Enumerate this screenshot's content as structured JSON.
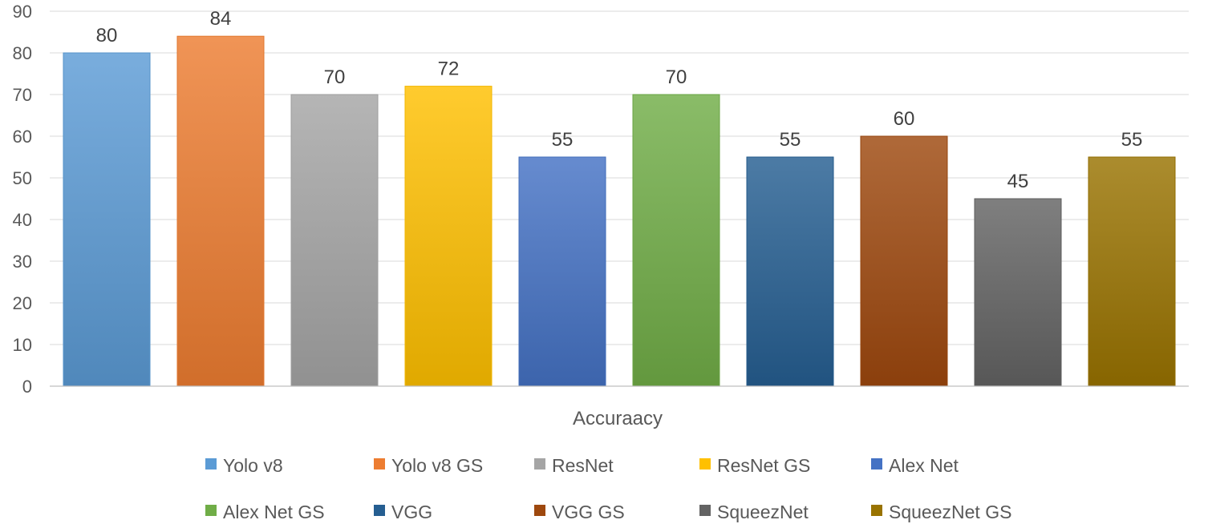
{
  "chart_data": {
    "type": "bar",
    "title": "",
    "xlabel": "Accuraacy",
    "ylabel": "",
    "ylim": [
      0,
      90
    ],
    "yticks": [
      0,
      10,
      20,
      30,
      40,
      50,
      60,
      70,
      80,
      90
    ],
    "grid": true,
    "legend_position": "bottom",
    "series": [
      {
        "name": "Yolo v8",
        "value": 80,
        "color": "#5B9BD5"
      },
      {
        "name": "Yolo v8 GS",
        "value": 84,
        "color": "#ED7D31"
      },
      {
        "name": "ResNet",
        "value": 70,
        "color": "#A5A5A5"
      },
      {
        "name": "ResNet GS",
        "value": 72,
        "color": "#FFC000"
      },
      {
        "name": "Alex Net",
        "value": 55,
        "color": "#4472C4"
      },
      {
        "name": "Alex Net GS",
        "value": 70,
        "color": "#70AD47"
      },
      {
        "name": "VGG",
        "value": 55,
        "color": "#255E91"
      },
      {
        "name": "VGG GS",
        "value": 60,
        "color": "#9E480E"
      },
      {
        "name": "SqueezNet",
        "value": 45,
        "color": "#636363"
      },
      {
        "name": "SqueezNet GS",
        "value": 55,
        "color": "#997300"
      }
    ]
  }
}
